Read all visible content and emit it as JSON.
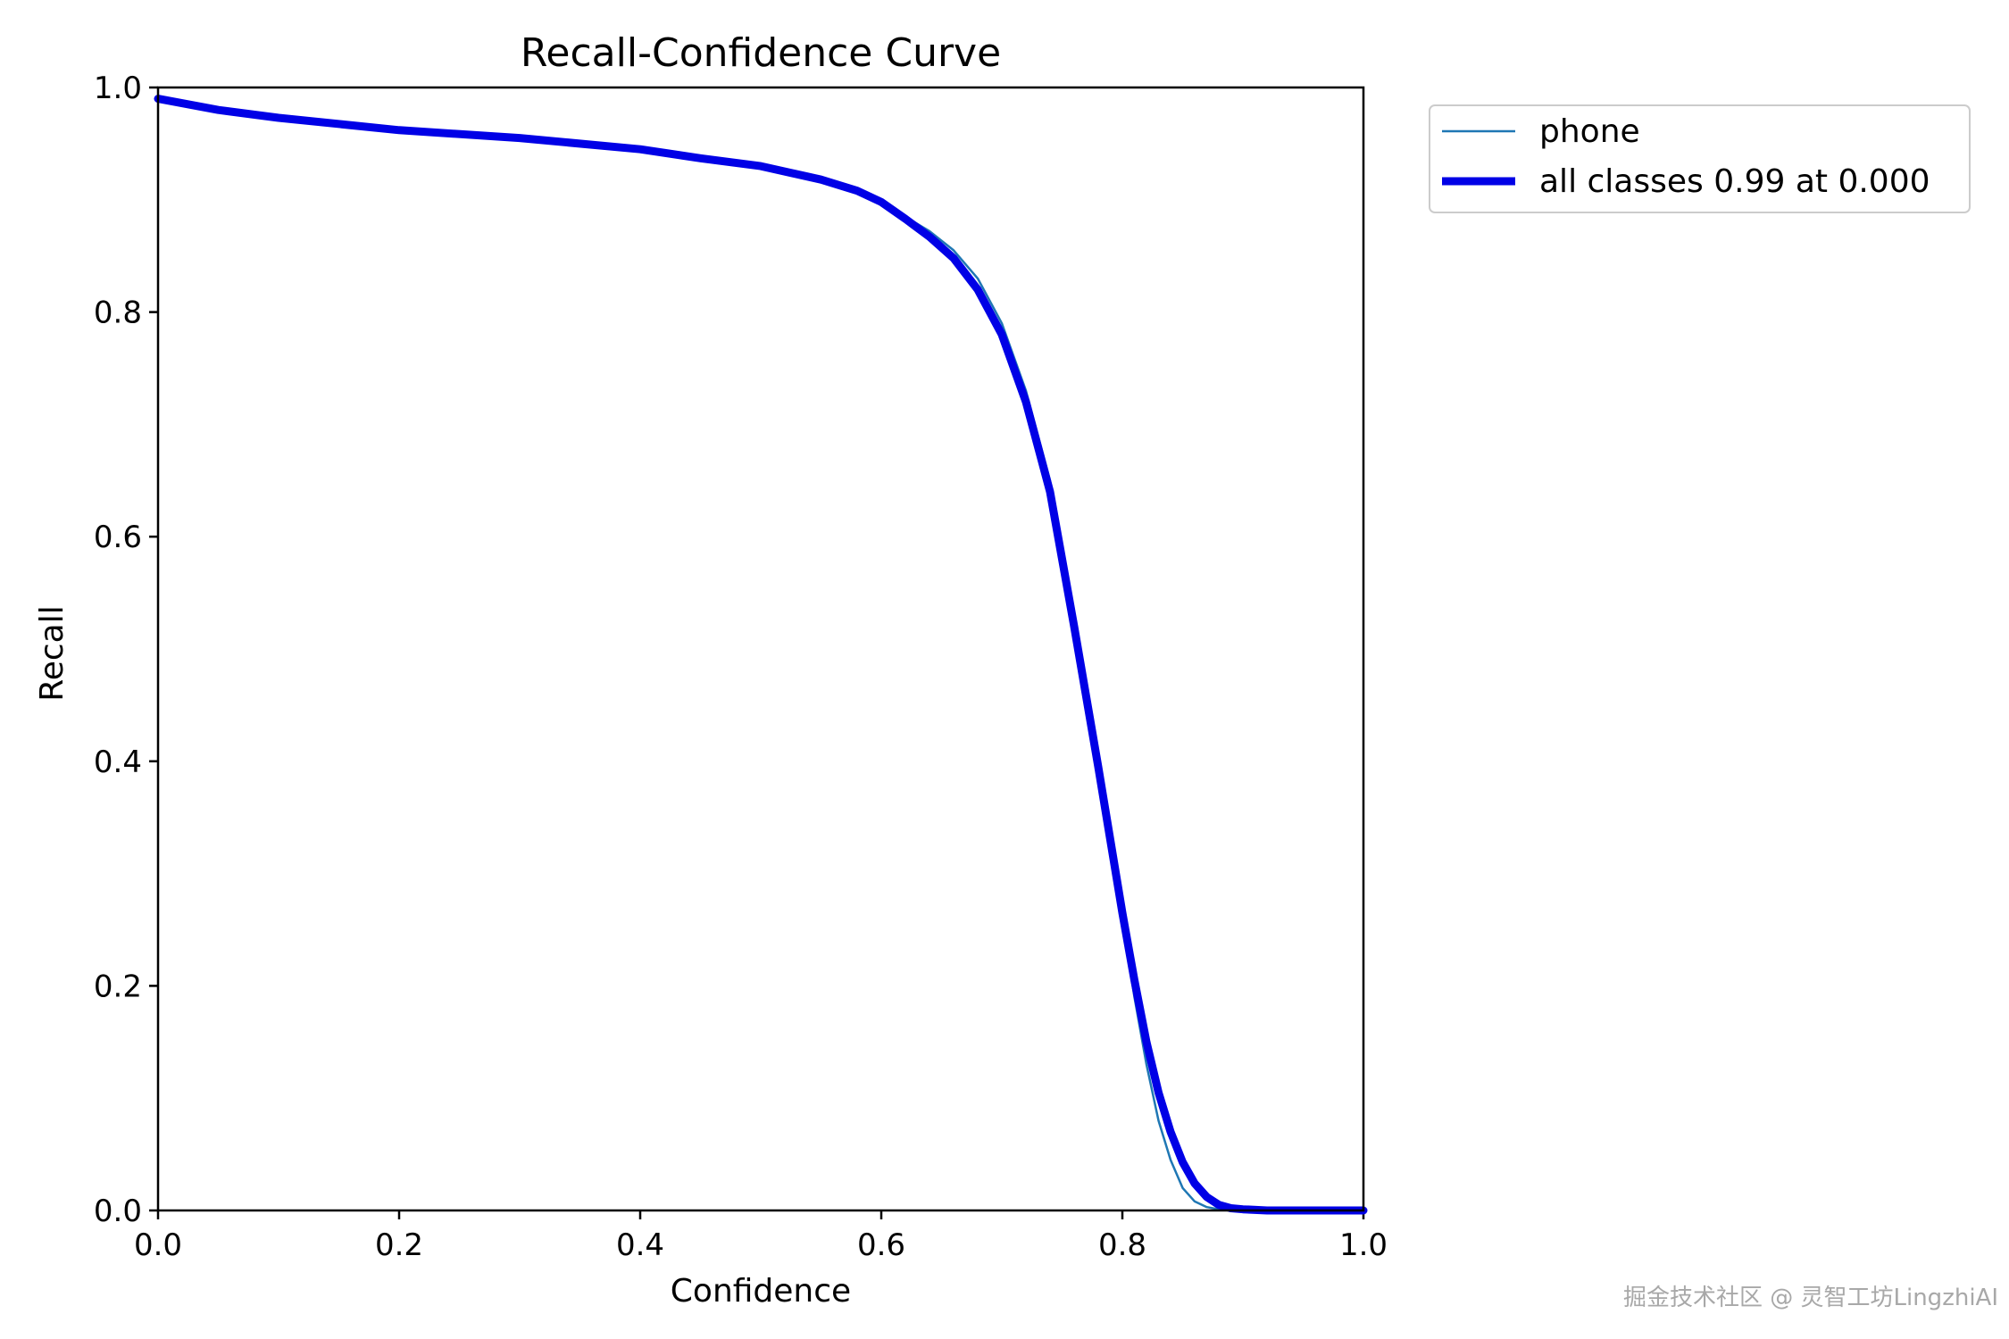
{
  "chart_data": {
    "type": "line",
    "title": "Recall-Confidence Curve",
    "xlabel": "Confidence",
    "ylabel": "Recall",
    "xlim": [
      0,
      1
    ],
    "ylim": [
      0,
      1
    ],
    "xticks": [
      "0.0",
      "0.2",
      "0.4",
      "0.6",
      "0.8",
      "1.0"
    ],
    "yticks": [
      "0.0",
      "0.2",
      "0.4",
      "0.6",
      "0.8",
      "1.0"
    ],
    "grid": false,
    "legend_position": "outside-upper-right",
    "series": [
      {
        "name": "phone",
        "color": "#1f77b4",
        "x": [
          0.0,
          0.05,
          0.1,
          0.2,
          0.3,
          0.4,
          0.45,
          0.5,
          0.55,
          0.58,
          0.6,
          0.62,
          0.64,
          0.66,
          0.68,
          0.7,
          0.72,
          0.74,
          0.76,
          0.78,
          0.79,
          0.8,
          0.81,
          0.82,
          0.83,
          0.84,
          0.85,
          0.86,
          0.87,
          0.88,
          0.9,
          0.95,
          1.0
        ],
        "y": [
          0.99,
          0.98,
          0.973,
          0.962,
          0.955,
          0.945,
          0.937,
          0.93,
          0.918,
          0.908,
          0.898,
          0.885,
          0.872,
          0.855,
          0.83,
          0.79,
          0.73,
          0.65,
          0.53,
          0.4,
          0.33,
          0.26,
          0.19,
          0.13,
          0.08,
          0.045,
          0.02,
          0.008,
          0.003,
          0.001,
          0.0,
          0.0,
          0.0
        ]
      },
      {
        "name": "all classes 0.99 at 0.000",
        "color": "#0000e6",
        "x": [
          0.0,
          0.05,
          0.1,
          0.2,
          0.3,
          0.4,
          0.45,
          0.5,
          0.55,
          0.58,
          0.6,
          0.62,
          0.64,
          0.66,
          0.68,
          0.7,
          0.72,
          0.74,
          0.76,
          0.78,
          0.79,
          0.8,
          0.81,
          0.82,
          0.83,
          0.84,
          0.85,
          0.86,
          0.87,
          0.88,
          0.89,
          0.9,
          0.92,
          0.95,
          1.0
        ],
        "y": [
          0.99,
          0.98,
          0.973,
          0.962,
          0.955,
          0.945,
          0.937,
          0.93,
          0.918,
          0.908,
          0.898,
          0.883,
          0.867,
          0.848,
          0.82,
          0.78,
          0.72,
          0.64,
          0.52,
          0.395,
          0.33,
          0.265,
          0.205,
          0.15,
          0.105,
          0.07,
          0.043,
          0.024,
          0.012,
          0.005,
          0.002,
          0.001,
          0.0,
          0.0,
          0.0
        ]
      }
    ]
  },
  "watermark": "掘金技术社区 @ 灵智工坊LingzhiAI"
}
